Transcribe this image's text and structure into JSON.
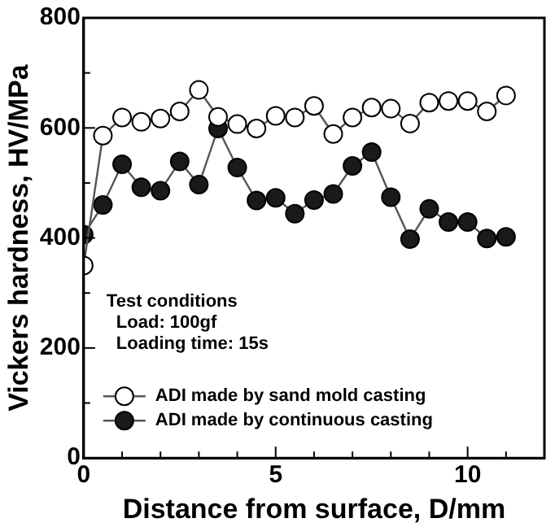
{
  "chart_data": {
    "type": "line",
    "xlabel": "Distance from surface, D/mm",
    "ylabel": "Vickers hardness, HV/MPa",
    "x": [
      0,
      0.5,
      1,
      1.5,
      2,
      2.5,
      3,
      3.5,
      4,
      4.5,
      5,
      5.5,
      6,
      6.5,
      7,
      7.5,
      8,
      8.5,
      9,
      9.5,
      10,
      10.5,
      11
    ],
    "series": [
      {
        "name": "ADI made by sand mold casting",
        "color": "#ffffff",
        "values": [
          350,
          586,
          619,
          611,
          617,
          630,
          669,
          620,
          607,
          599,
          622,
          619,
          640,
          589,
          619,
          637,
          635,
          608,
          646,
          649,
          649,
          630,
          659
        ]
      },
      {
        "name": "ADI made by continuous casting",
        "color": "#1a1a1a",
        "values": [
          406,
          460,
          534,
          492,
          486,
          539,
          497,
          599,
          528,
          468,
          473,
          444,
          469,
          480,
          531,
          556,
          474,
          398,
          453,
          429,
          429,
          399,
          402
        ]
      }
    ],
    "xlim": [
      0,
      12
    ],
    "xticks": [
      0,
      {
        "value": 1,
        "label": null
      },
      {
        "value": 2,
        "label": null
      },
      {
        "value": 3,
        "label": null
      },
      {
        "value": 4,
        "label": null
      },
      5,
      {
        "value": 6,
        "label": null
      },
      {
        "value": 7,
        "label": null
      },
      {
        "value": 8,
        "label": null
      },
      {
        "value": 9,
        "label": null
      },
      10,
      {
        "value": 11,
        "label": null
      }
    ],
    "ylim": [
      0,
      800
    ],
    "yticks": [
      0,
      {
        "value": 100,
        "label": null
      },
      200,
      {
        "value": 300,
        "label": null
      },
      400,
      {
        "value": 500,
        "label": null
      },
      600,
      {
        "value": 700,
        "label": null
      },
      800
    ],
    "annotations": [
      "Test conditions",
      " Load: 100gf",
      " Loading time: 15s"
    ],
    "legend": "bottom left",
    "grid": false,
    "marker": "circle",
    "line_style": "solid"
  }
}
